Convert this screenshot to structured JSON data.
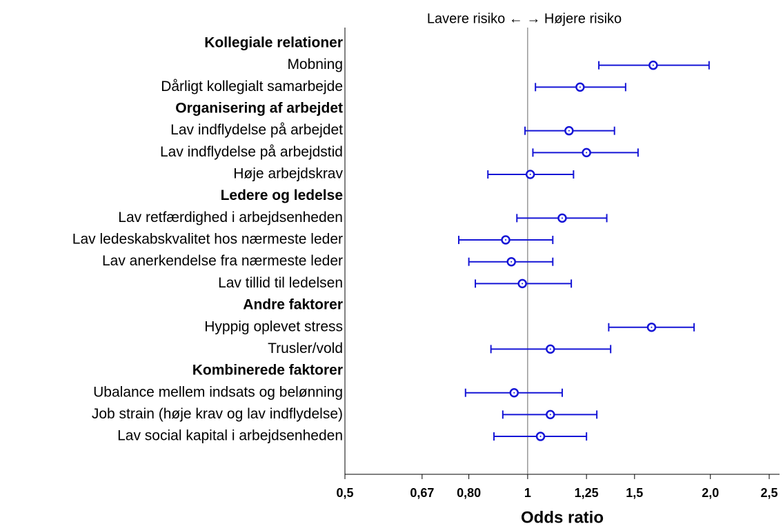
{
  "chart_data": {
    "type": "forest",
    "annotation": "Lavere risiko ← → Højere risiko",
    "x_label": "Odds ratio",
    "log_x": true,
    "color": "#1515d6",
    "reference": 1,
    "xlim": [
      0.5,
      2.6
    ],
    "xticks": [
      {
        "value": 0.5,
        "label": "0,5"
      },
      {
        "value": 0.67,
        "label": "0,67"
      },
      {
        "value": 0.8,
        "label": "0,80"
      },
      1,
      {
        "value": 1.25,
        "label": "1,25"
      },
      {
        "value": 1.5,
        "label": "1,5"
      },
      {
        "value": 2.0,
        "label": "2,0"
      },
      {
        "value": 2.5,
        "label": "2,5"
      }
    ],
    "groups": [
      {
        "name": "Kollegiale relationer",
        "items": [
          {
            "label": "Mobning",
            "value": 1.61,
            "lower": 1.31,
            "upper": 1.99
          },
          {
            "label": "Dårligt kollegialt samarbejde",
            "value": 1.22,
            "lower": 1.03,
            "upper": 1.45
          }
        ]
      },
      {
        "name": "Organisering af arbejdet",
        "items": [
          {
            "label": "Lav indflydelse på arbejdet",
            "value": 1.17,
            "lower": 0.99,
            "upper": 1.39
          },
          {
            "label": "Lav indflydelse på arbejdstid",
            "value": 1.25,
            "lower": 1.02,
            "upper": 1.52
          },
          {
            "label": "Høje arbejdskrav",
            "value": 1.01,
            "lower": 0.86,
            "upper": 1.19
          }
        ]
      },
      {
        "name": "Ledere og ledelse",
        "items": [
          {
            "label": "Lav retfærdighed i arbejdsenheden",
            "value": 1.14,
            "lower": 0.96,
            "upper": 1.35
          },
          {
            "label": "Lav ledeskabskvalitet hos nærmeste leder",
            "value": 0.92,
            "lower": 0.77,
            "upper": 1.1
          },
          {
            "label": "Lav anerkendelse fra nærmeste leder",
            "value": 0.94,
            "lower": 0.8,
            "upper": 1.1
          },
          {
            "label": "Lav tillid til ledelsen",
            "value": 0.98,
            "lower": 0.82,
            "upper": 1.18
          }
        ]
      },
      {
        "name": "Andre faktorer",
        "items": [
          {
            "label": "Hyppig oplevet stress",
            "value": 1.6,
            "lower": 1.36,
            "upper": 1.88
          },
          {
            "label": "Trusler/vold",
            "value": 1.09,
            "lower": 0.87,
            "upper": 1.37
          }
        ]
      },
      {
        "name": "Kombinerede faktorer",
        "items": [
          {
            "label": "Ubalance mellem indsats og belønning",
            "value": 0.95,
            "lower": 0.79,
            "upper": 1.14
          },
          {
            "label": "Job strain (høje krav og lav indflydelse)",
            "value": 1.09,
            "lower": 0.91,
            "upper": 1.3
          },
          {
            "label": "Lav social kapital i arbejdsenheden",
            "value": 1.05,
            "lower": 0.88,
            "upper": 1.25
          }
        ]
      }
    ]
  }
}
